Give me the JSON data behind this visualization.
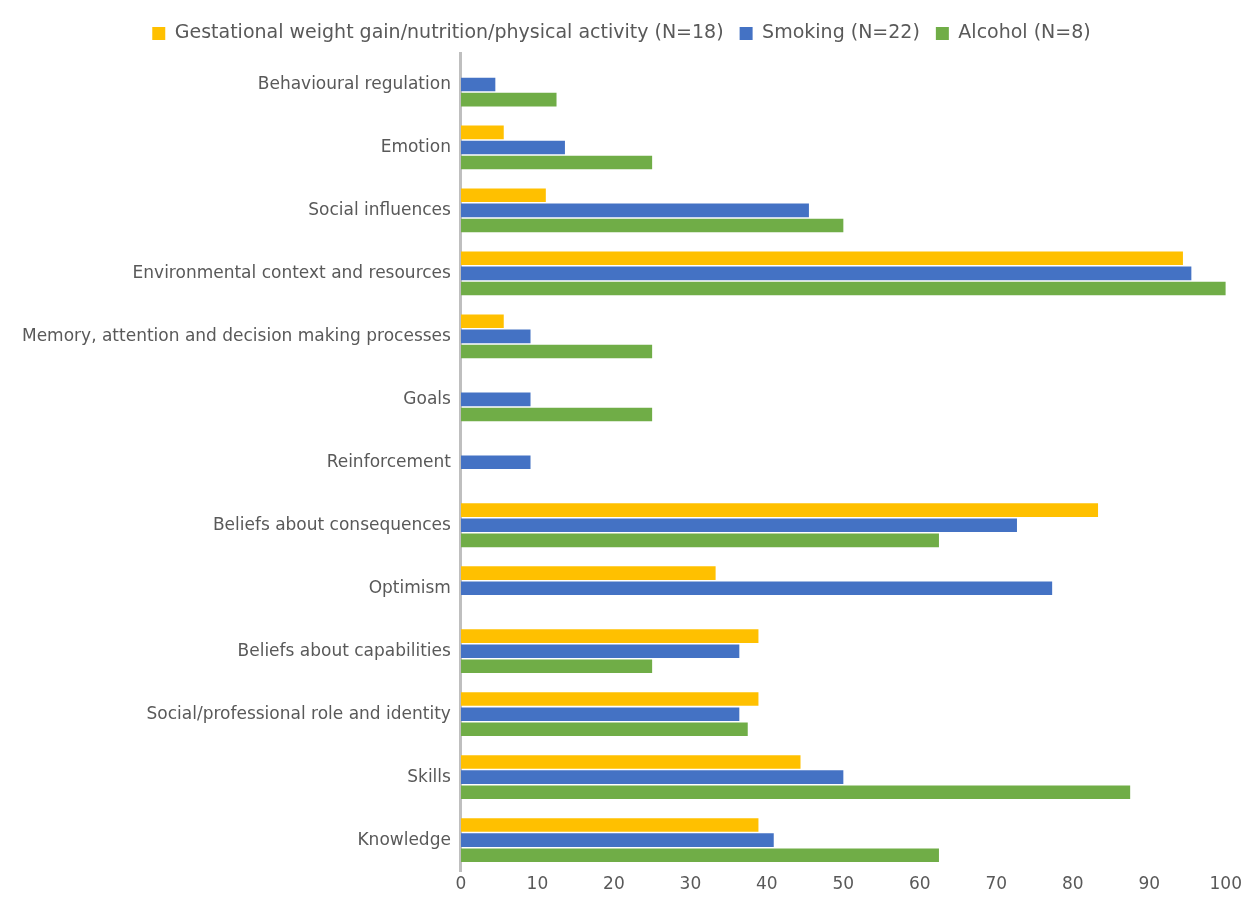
{
  "chart_data": {
    "type": "bar",
    "orientation": "horizontal",
    "categories": [
      "Behavioural regulation",
      "Emotion",
      "Social influences",
      "Environmental context and resources",
      "Memory, attention and decision making processes",
      "Goals",
      "Reinforcement",
      "Beliefs about consequences",
      "Optimism",
      "Beliefs about capabilities",
      "Social/professional role and identity",
      "Skills",
      "Knowledge"
    ],
    "series": [
      {
        "name": "Gestational weight gain/nutrition/physical activity (N=18)",
        "color": "#ffc000",
        "values": [
          0,
          5.6,
          11.1,
          94.4,
          5.6,
          0,
          0,
          83.3,
          33.3,
          38.9,
          38.9,
          44.4,
          38.9
        ]
      },
      {
        "name": "Smoking (N=22)",
        "color": "#4472c4",
        "values": [
          4.5,
          13.6,
          45.5,
          95.5,
          9.1,
          9.1,
          9.1,
          72.7,
          77.3,
          36.4,
          36.4,
          50,
          40.9
        ]
      },
      {
        "name": "Alcohol (N=8)",
        "color": "#70ad47",
        "values": [
          12.5,
          25,
          50,
          100,
          25,
          25,
          0,
          62.5,
          0,
          25,
          37.5,
          87.5,
          62.5
        ]
      }
    ],
    "xlim": [
      0,
      100
    ],
    "xticks": [
      0,
      10,
      20,
      30,
      40,
      50,
      60,
      70,
      80,
      90,
      100
    ],
    "grid": false,
    "legend": "top"
  }
}
